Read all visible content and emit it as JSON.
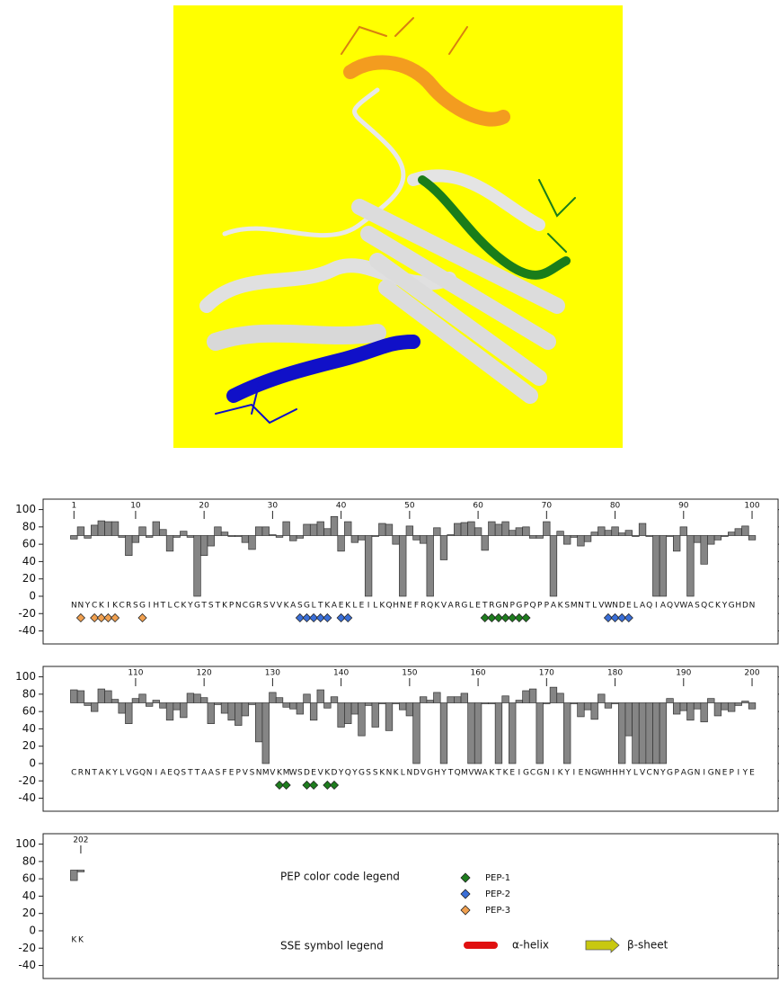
{
  "chart_data": [
    {
      "type": "bar",
      "baseline": 70,
      "categories": [
        "N",
        "N",
        "Y",
        "C",
        "K",
        "I",
        "K",
        "C",
        "R",
        "S",
        "G",
        "I",
        "H",
        "T",
        "L",
        "C",
        "K",
        "Y",
        "G",
        "T",
        "S",
        "T",
        "K",
        "P",
        "N",
        "C",
        "G",
        "R",
        "S",
        "V",
        "V",
        "K",
        "A",
        "S",
        "G",
        "L",
        "T",
        "K",
        "A",
        "E",
        "K",
        "L",
        "E",
        "I",
        "L",
        "K",
        "Q",
        "H",
        "N",
        "E",
        "F",
        "R",
        "Q",
        "K",
        "V",
        "A",
        "R",
        "G",
        "L",
        "E",
        "T",
        "R",
        "G",
        "N",
        "P",
        "G",
        "P",
        "Q",
        "P",
        "P",
        "A",
        "K",
        "S",
        "M",
        "N",
        "T",
        "L",
        "V",
        "W",
        "N",
        "D",
        "E",
        "L",
        "A",
        "Q",
        "I",
        "A",
        "Q",
        "V",
        "W",
        "A",
        "S",
        "Q",
        "C",
        "K",
        "Y",
        "G",
        "H",
        "D",
        "N"
      ],
      "x": [
        1,
        2,
        3,
        4,
        5,
        6,
        7,
        8,
        9,
        10,
        11,
        12,
        13,
        14,
        15,
        16,
        17,
        18,
        19,
        20,
        21,
        22,
        23,
        24,
        25,
        26,
        27,
        28,
        29,
        30,
        31,
        32,
        33,
        34,
        35,
        36,
        37,
        38,
        39,
        40,
        41,
        42,
        43,
        44,
        45,
        46,
        47,
        48,
        49,
        50,
        51,
        52,
        53,
        54,
        55,
        56,
        57,
        58,
        59,
        60,
        61,
        62,
        63,
        64,
        65,
        66,
        67,
        68,
        69,
        70,
        71,
        72,
        73,
        74,
        75,
        76,
        77,
        78,
        79,
        80,
        81,
        82,
        83,
        84,
        85,
        86,
        87,
        88,
        89,
        90,
        91,
        92,
        93,
        94,
        95,
        96,
        97,
        98,
        99,
        100
      ],
      "values": [
        66,
        80,
        67,
        82,
        87,
        86,
        86,
        68,
        47,
        62,
        80,
        68,
        86,
        77,
        52,
        68,
        75,
        68,
        0,
        47,
        58,
        80,
        74,
        70,
        70,
        62,
        54,
        80,
        80,
        71,
        68,
        86,
        64,
        67,
        83,
        83,
        86,
        78,
        92,
        52,
        86,
        62,
        65,
        0,
        69,
        84,
        83,
        60,
        0,
        81,
        65,
        61,
        0,
        79,
        42,
        71,
        84,
        85,
        86,
        79,
        53,
        86,
        83,
        86,
        76,
        79,
        80,
        67,
        67,
        86,
        0,
        75,
        60,
        68,
        58,
        63,
        74,
        80,
        76,
        80,
        73,
        76,
        70,
        84,
        70,
        0,
        0,
        70,
        52,
        80,
        0,
        62,
        37,
        60,
        65,
        70,
        74,
        78,
        81,
        65
      ],
      "xlim": [
        -3.5,
        103.8
      ],
      "xticks": [
        1,
        10,
        20,
        30,
        40,
        50,
        60,
        70,
        80,
        90,
        100
      ],
      "ylim": [
        -55,
        112
      ],
      "yticks": [
        -40,
        -20,
        0,
        20,
        40,
        60,
        80,
        100
      ],
      "markers": [
        {
          "pep": "PEP-3",
          "x": [
            2,
            4,
            5,
            6,
            7,
            11
          ]
        },
        {
          "pep": "PEP-2",
          "x": [
            34,
            35,
            36,
            37,
            38,
            40,
            41
          ]
        },
        {
          "pep": "PEP-1",
          "x": [
            61,
            62,
            63,
            64,
            65,
            66,
            67
          ]
        },
        {
          "pep": "PEP-2",
          "x": [
            79,
            80,
            81,
            82
          ]
        }
      ]
    },
    {
      "type": "bar",
      "baseline": 70,
      "categories": [
        "C",
        "R",
        "N",
        "T",
        "A",
        "K",
        "Y",
        "L",
        "V",
        "G",
        "Q",
        "N",
        "I",
        "A",
        "E",
        "Q",
        "S",
        "T",
        "T",
        "A",
        "A",
        "S",
        "F",
        "E",
        "P",
        "V",
        "S",
        "N",
        "M",
        "V",
        "K",
        "M",
        "W",
        "S",
        "D",
        "E",
        "V",
        "K",
        "D",
        "Y",
        "Q",
        "Y",
        "G",
        "S",
        "S",
        "K",
        "N",
        "K",
        "L",
        "N",
        "D",
        "V",
        "G",
        "H",
        "Y",
        "T",
        "Q",
        "M",
        "V",
        "W",
        "A",
        "K",
        "T",
        "K",
        "E",
        "I",
        "G",
        "C",
        "G",
        "N",
        "I",
        "K",
        "Y",
        "I",
        "E",
        "N",
        "G",
        "W",
        "H",
        "H",
        "H",
        "Y",
        "L",
        "V",
        "C",
        "N",
        "Y",
        "G",
        "P",
        "A",
        "G",
        "N",
        "I",
        "G",
        "N",
        "E",
        "P",
        "I",
        "Y",
        "E"
      ],
      "x": [
        101,
        102,
        103,
        104,
        105,
        106,
        107,
        108,
        109,
        110,
        111,
        112,
        113,
        114,
        115,
        116,
        117,
        118,
        119,
        120,
        121,
        122,
        123,
        124,
        125,
        126,
        127,
        128,
        129,
        130,
        131,
        132,
        133,
        134,
        135,
        136,
        137,
        138,
        139,
        140,
        141,
        142,
        143,
        144,
        145,
        146,
        147,
        148,
        149,
        150,
        151,
        152,
        153,
        154,
        155,
        156,
        157,
        158,
        159,
        160,
        161,
        162,
        163,
        164,
        165,
        166,
        167,
        168,
        169,
        170,
        171,
        172,
        173,
        174,
        175,
        176,
        177,
        178,
        179,
        180,
        181,
        182,
        183,
        184,
        185,
        186,
        187,
        188,
        189,
        190,
        191,
        192,
        193,
        194,
        195,
        196,
        197,
        198,
        199,
        200
      ],
      "values": [
        85,
        84,
        67,
        60,
        86,
        84,
        74,
        58,
        46,
        75,
        80,
        66,
        73,
        64,
        50,
        62,
        53,
        81,
        80,
        76,
        46,
        68,
        58,
        50,
        44,
        55,
        68,
        25,
        0,
        82,
        76,
        65,
        63,
        57,
        80,
        50,
        85,
        64,
        77,
        42,
        46,
        57,
        32,
        67,
        42,
        70,
        38,
        70,
        62,
        55,
        0,
        77,
        73,
        82,
        0,
        77,
        77,
        81,
        0,
        0,
        70,
        70,
        0,
        78,
        0,
        73,
        84,
        86,
        0,
        69,
        88,
        81,
        0,
        70,
        54,
        62,
        51,
        80,
        64,
        70,
        0,
        32,
        0,
        0,
        0,
        0,
        0,
        75,
        57,
        61,
        50,
        63,
        48,
        75,
        55,
        62,
        60,
        67,
        72,
        63
      ],
      "xlim": [
        96.5,
        203.8
      ],
      "xticks": [
        110,
        120,
        130,
        140,
        150,
        160,
        170,
        180,
        190,
        200
      ],
      "ylim": [
        -55,
        112
      ],
      "yticks": [
        -40,
        -20,
        0,
        20,
        40,
        60,
        80,
        100
      ],
      "markers": [
        {
          "pep": "PEP-1",
          "x": [
            131,
            132,
            135,
            136,
            138,
            139
          ]
        }
      ]
    },
    {
      "type": "bar",
      "baseline": 70,
      "categories": [
        "K",
        "K"
      ],
      "x": [
        201,
        202
      ],
      "values": [
        58,
        68
      ],
      "xlim": [
        196.5,
        303.8
      ],
      "xticks": [
        202
      ],
      "ylim": [
        -55,
        112
      ],
      "yticks": [
        -40,
        -20,
        0,
        20,
        40,
        60,
        80,
        100
      ],
      "markers": []
    }
  ],
  "legend": {
    "pep_title": "PEP color code legend",
    "peps": [
      {
        "name": "PEP-1",
        "color": "#1e7d1e"
      },
      {
        "name": "PEP-2",
        "color": "#3a6fd8"
      },
      {
        "name": "PEP-3",
        "color": "#f0a050"
      }
    ],
    "sse_title": "SSE symbol legend",
    "sse": [
      {
        "name": "α-helix",
        "color": "#e01010"
      },
      {
        "name": "β-sheet",
        "color": "#c8c810"
      }
    ]
  }
}
